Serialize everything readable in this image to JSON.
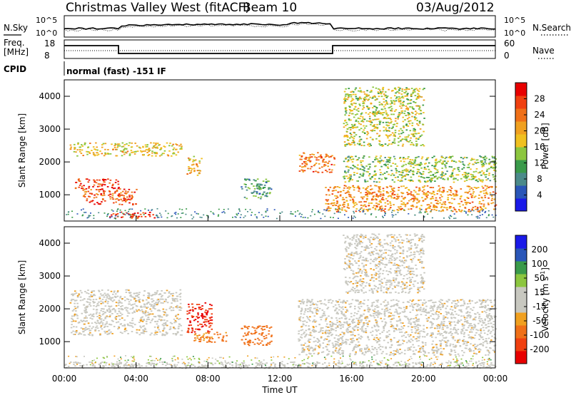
{
  "header": {
    "station": "Christmas Valley West (fitACF)",
    "beam": "Beam 10",
    "date": "03/Aug/2012"
  },
  "top_panels": {
    "nsky_label": "N.Sky",
    "nsky_ticks": [
      "10^5",
      "10^0"
    ],
    "nsearch_label": "N.Search",
    "nsearch_ticks": [
      "10^5",
      "10^0"
    ],
    "freq_label": "Freq.",
    "freq_unit": "[MHz]",
    "freq_ticks": [
      "18",
      "8"
    ],
    "nave_label": "Nave",
    "nave_ticks": [
      "60",
      "0"
    ],
    "cpid_label": "CPID",
    "cpid_text": "normal (fast) -151 IF"
  },
  "chart_data": [
    {
      "type": "heatmap",
      "title": "",
      "ylabel": "Slant Range [km]",
      "xlabel": "",
      "ylim": [
        200,
        4500
      ],
      "yticks": [
        1000,
        2000,
        3000,
        4000
      ],
      "colorbar": {
        "label": "Power [dB]",
        "ticks": [
          4,
          8,
          12,
          16,
          20,
          24,
          28
        ],
        "colors": [
          "#1a1ae8",
          "#2a56b8",
          "#4b8a8a",
          "#3a9a4a",
          "#8cc63f",
          "#f0c020",
          "#f0a020",
          "#f07018",
          "#f04010",
          "#e80000"
        ]
      },
      "series": [
        {
          "x": [
            0.5,
            3.0
          ],
          "y": [
            1200,
            1500
          ],
          "z": 28
        },
        {
          "x": [
            1.0,
            4.0
          ],
          "y": [
            700,
            1200
          ],
          "z": 26
        },
        {
          "x": [
            2.5,
            5.0
          ],
          "y": [
            300,
            500
          ],
          "z": 28
        },
        {
          "x": [
            0.3,
            6.5
          ],
          "y": [
            2200,
            2600
          ],
          "z": 18
        },
        {
          "x": [
            6.8,
            7.6
          ],
          "y": [
            1600,
            2200
          ],
          "z": 20
        },
        {
          "x": [
            9.8,
            11.5
          ],
          "y": [
            900,
            1500
          ],
          "z": 10
        },
        {
          "x": [
            13.0,
            15.0
          ],
          "y": [
            1700,
            2300
          ],
          "z": 24
        },
        {
          "x": [
            14.5,
            24.0
          ],
          "y": [
            500,
            1300
          ],
          "z": 22
        },
        {
          "x": [
            15.5,
            24.0
          ],
          "y": [
            1400,
            2200
          ],
          "z": 14
        },
        {
          "x": [
            15.5,
            20.0
          ],
          "y": [
            2500,
            4300
          ],
          "z": 16
        }
      ]
    },
    {
      "type": "heatmap",
      "title": "",
      "ylabel": "Slant Range [km]",
      "xlabel": "Time UT",
      "ylim": [
        200,
        4500
      ],
      "yticks": [
        1000,
        2000,
        3000,
        4000
      ],
      "colorbar": {
        "label": "Velocity [m s^-1]",
        "ticks": [
          -200,
          -100,
          -50,
          -15,
          15,
          50,
          100,
          200
        ],
        "colors": [
          "#e80000",
          "#f04010",
          "#f07018",
          "#f0a020",
          "#c8c8c0",
          "#c8c8c0",
          "#8cc63f",
          "#3a9a4a",
          "#2a56b8",
          "#1a1ae8"
        ]
      },
      "series": [
        {
          "x": [
            0.3,
            6.5
          ],
          "y": [
            1200,
            2600
          ],
          "z": 0
        },
        {
          "x": [
            6.8,
            8.2
          ],
          "y": [
            1300,
            2200
          ],
          "z": -200
        },
        {
          "x": [
            7.0,
            9.0
          ],
          "y": [
            1000,
            1300
          ],
          "z": -60
        },
        {
          "x": [
            9.8,
            11.5
          ],
          "y": [
            900,
            1500
          ],
          "z": -80
        },
        {
          "x": [
            13.0,
            24.0
          ],
          "y": [
            600,
            2300
          ],
          "z": 0
        },
        {
          "x": [
            15.5,
            20.0
          ],
          "y": [
            2500,
            4300
          ],
          "z": 0
        },
        {
          "x": [
            0.0,
            24.0
          ],
          "y": [
            200,
            400
          ],
          "z": 30
        }
      ]
    }
  ],
  "x_axis": {
    "label": "Time UT",
    "ticks": [
      "00:00",
      "04:00",
      "08:00",
      "12:00",
      "16:00",
      "20:00",
      "00:00"
    ]
  },
  "y_axis_ticks": [
    "1000",
    "2000",
    "3000",
    "4000"
  ],
  "power_colorbar_ticks": [
    "4",
    "8",
    "12",
    "16",
    "20",
    "24",
    "28"
  ],
  "velocity_colorbar_ticks": [
    "-200",
    "-100",
    "-50",
    "-15",
    "15",
    "50",
    "100",
    "200"
  ],
  "power_colorbar_label": "Power [dB]",
  "velocity_colorbar_label": "Velocity [m s",
  "velocity_colorbar_sup": "-1",
  "velocity_colorbar_close": "]",
  "ylabel": "Slant Range [km]"
}
